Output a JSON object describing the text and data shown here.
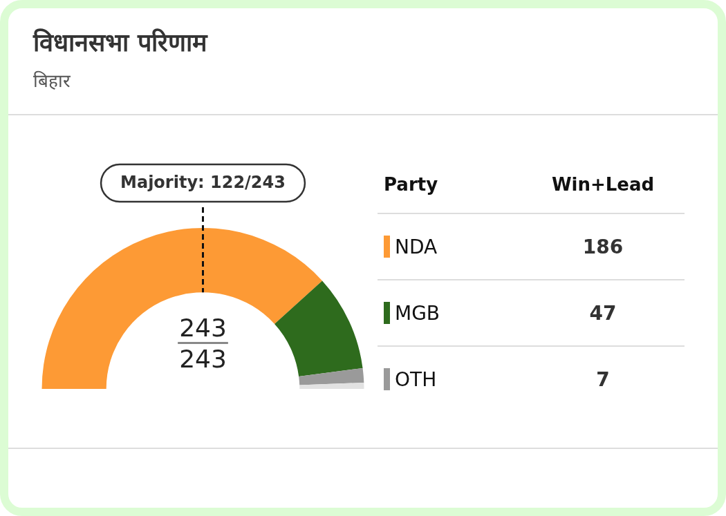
{
  "chart_data": {
    "type": "donut",
    "title": "विधानसभा परिणाम",
    "subtitle": "बिहार",
    "categories": [
      "NDA",
      "MGB",
      "OTH",
      null
    ],
    "values": [
      186,
      47,
      7,
      3
    ],
    "colors": [
      "#fd9a35",
      "#2e6b1d",
      "#9a9a9a",
      "#e2e2e2"
    ],
    "value_labels": [
      "186",
      "47",
      "7",
      null
    ],
    "legend": "right",
    "legend_title": "Party",
    "annotations": [
      "Win+Lead",
      "Majority: 122/243",
      "243",
      "243"
    ]
  }
}
